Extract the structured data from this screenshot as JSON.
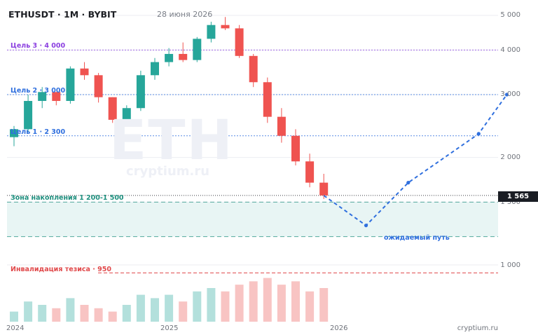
{
  "header": {
    "title": "ETHUSDT · 1M · BYBIT",
    "date": "28 июня 2026"
  },
  "watermark": {
    "big": "ETH",
    "small": "cryptium.ru"
  },
  "levels": {
    "target3": {
      "label": "Цель 3 · 4 000",
      "value": 4000,
      "color": "#8b3fe0"
    },
    "target2": {
      "label": "Цель 2 · 3 000",
      "value": 3000,
      "color": "#2f6fde"
    },
    "target1": {
      "label": "Цель 1 · 2 300",
      "value": 2300,
      "color": "#2f6fde"
    },
    "zone": {
      "label": "Зона накопления 1 200-1 500",
      "low": 1200,
      "high": 1500,
      "color": "#1e8f7e",
      "fill": "#e8f5f4"
    },
    "invalidation": {
      "label": "Инвалидация тезиса · 950",
      "value": 950,
      "color": "#e0484a"
    },
    "current": {
      "label": "1 565",
      "value": 1565
    }
  },
  "projection": {
    "label": "ожидаемый путь",
    "color": "#2f6fde"
  },
  "axis": {
    "y_ticks": [
      {
        "label": "5 000",
        "value": 5000
      },
      {
        "label": "4 000",
        "value": 4000
      },
      {
        "label": "3 000",
        "value": 3000
      },
      {
        "label": "2 000",
        "value": 2000
      },
      {
        "label": "1 500",
        "value": 1500
      },
      {
        "label": "1 000",
        "value": 1000
      }
    ],
    "x_ticks": [
      {
        "label": "2024",
        "date": "2024-01"
      },
      {
        "label": "2025",
        "date": "2025-01"
      },
      {
        "label": "2026",
        "date": "2026-01"
      }
    ]
  },
  "footer": {
    "brand": "cryptium.ru"
  },
  "colors": {
    "up": "#26a69a",
    "down": "#ef5350",
    "up_volume": "#b3e0dc",
    "down_volume": "#f8c4c3"
  },
  "chart_data": {
    "type": "candlestick",
    "x_unit": "month",
    "y_scale": "log",
    "x_range": [
      "2024-01",
      "2026-12"
    ],
    "ylim": [
      900,
      5200
    ],
    "grid": true,
    "candles": [
      {
        "date": "2024-01",
        "open": 2280,
        "high": 2450,
        "low": 2150,
        "close": 2400
      },
      {
        "date": "2024-02",
        "open": 2400,
        "high": 3000,
        "low": 2350,
        "close": 2880
      },
      {
        "date": "2024-03",
        "open": 2880,
        "high": 3150,
        "low": 2750,
        "close": 3050
      },
      {
        "date": "2024-04",
        "open": 3050,
        "high": 3050,
        "low": 2800,
        "close": 2880
      },
      {
        "date": "2024-05",
        "open": 2880,
        "high": 3600,
        "low": 2830,
        "close": 3550
      },
      {
        "date": "2024-06",
        "open": 3550,
        "high": 3700,
        "low": 3300,
        "close": 3400
      },
      {
        "date": "2024-07",
        "open": 3400,
        "high": 3450,
        "low": 2850,
        "close": 2950
      },
      {
        "date": "2024-08",
        "open": 2950,
        "high": 2950,
        "low": 2500,
        "close": 2550
      },
      {
        "date": "2024-09",
        "open": 2550,
        "high": 2800,
        "low": 2500,
        "close": 2750
      },
      {
        "date": "2024-10",
        "open": 2750,
        "high": 3500,
        "low": 2700,
        "close": 3400
      },
      {
        "date": "2024-11",
        "open": 3400,
        "high": 3800,
        "low": 3300,
        "close": 3700
      },
      {
        "date": "2024-12",
        "open": 3700,
        "high": 4050,
        "low": 3600,
        "close": 3900
      },
      {
        "date": "2025-01",
        "open": 3900,
        "high": 4200,
        "low": 3700,
        "close": 3750
      },
      {
        "date": "2025-02",
        "open": 3750,
        "high": 4350,
        "low": 3700,
        "close": 4300
      },
      {
        "date": "2025-03",
        "open": 4300,
        "high": 4800,
        "low": 4200,
        "close": 4700
      },
      {
        "date": "2025-04",
        "open": 4700,
        "high": 4950,
        "low": 4550,
        "close": 4600
      },
      {
        "date": "2025-05",
        "open": 4600,
        "high": 4700,
        "low": 3800,
        "close": 3850
      },
      {
        "date": "2025-06",
        "open": 3850,
        "high": 3900,
        "low": 3150,
        "close": 3250
      },
      {
        "date": "2025-07",
        "open": 3250,
        "high": 3350,
        "low": 2500,
        "close": 2600
      },
      {
        "date": "2025-08",
        "open": 2600,
        "high": 2750,
        "low": 2200,
        "close": 2300
      },
      {
        "date": "2025-09",
        "open": 2300,
        "high": 2400,
        "low": 1900,
        "close": 1950
      },
      {
        "date": "2025-10",
        "open": 1950,
        "high": 2050,
        "low": 1650,
        "close": 1700
      },
      {
        "date": "2025-11",
        "open": 1700,
        "high": 1800,
        "low": 1530,
        "close": 1565
      }
    ],
    "volume": [
      {
        "date": "2024-01",
        "value": 3,
        "up": true
      },
      {
        "date": "2024-02",
        "value": 6,
        "up": true
      },
      {
        "date": "2024-03",
        "value": 5,
        "up": true
      },
      {
        "date": "2024-04",
        "value": 4,
        "up": false
      },
      {
        "date": "2024-05",
        "value": 7,
        "up": true
      },
      {
        "date": "2024-06",
        "value": 5,
        "up": false
      },
      {
        "date": "2024-07",
        "value": 4,
        "up": false
      },
      {
        "date": "2024-08",
        "value": 3,
        "up": false
      },
      {
        "date": "2024-09",
        "value": 5,
        "up": true
      },
      {
        "date": "2024-10",
        "value": 8,
        "up": true
      },
      {
        "date": "2024-11",
        "value": 7,
        "up": true
      },
      {
        "date": "2024-12",
        "value": 8,
        "up": true
      },
      {
        "date": "2025-01",
        "value": 6,
        "up": false
      },
      {
        "date": "2025-02",
        "value": 9,
        "up": true
      },
      {
        "date": "2025-03",
        "value": 10,
        "up": true
      },
      {
        "date": "2025-04",
        "value": 9,
        "up": false
      },
      {
        "date": "2025-05",
        "value": 11,
        "up": false
      },
      {
        "date": "2025-06",
        "value": 12,
        "up": false
      },
      {
        "date": "2025-07",
        "value": 13,
        "up": false
      },
      {
        "date": "2025-08",
        "value": 11,
        "up": false
      },
      {
        "date": "2025-09",
        "value": 12,
        "up": false
      },
      {
        "date": "2025-10",
        "value": 9,
        "up": false
      },
      {
        "date": "2025-11",
        "value": 10,
        "up": false
      }
    ],
    "projection": [
      {
        "date": "2025-11",
        "value": 1565
      },
      {
        "date": "2026-02",
        "value": 1290
      },
      {
        "date": "2026-05",
        "value": 1700
      },
      {
        "date": "2026-10",
        "value": 2330
      },
      {
        "date": "2026-12",
        "value": 3000
      }
    ]
  }
}
